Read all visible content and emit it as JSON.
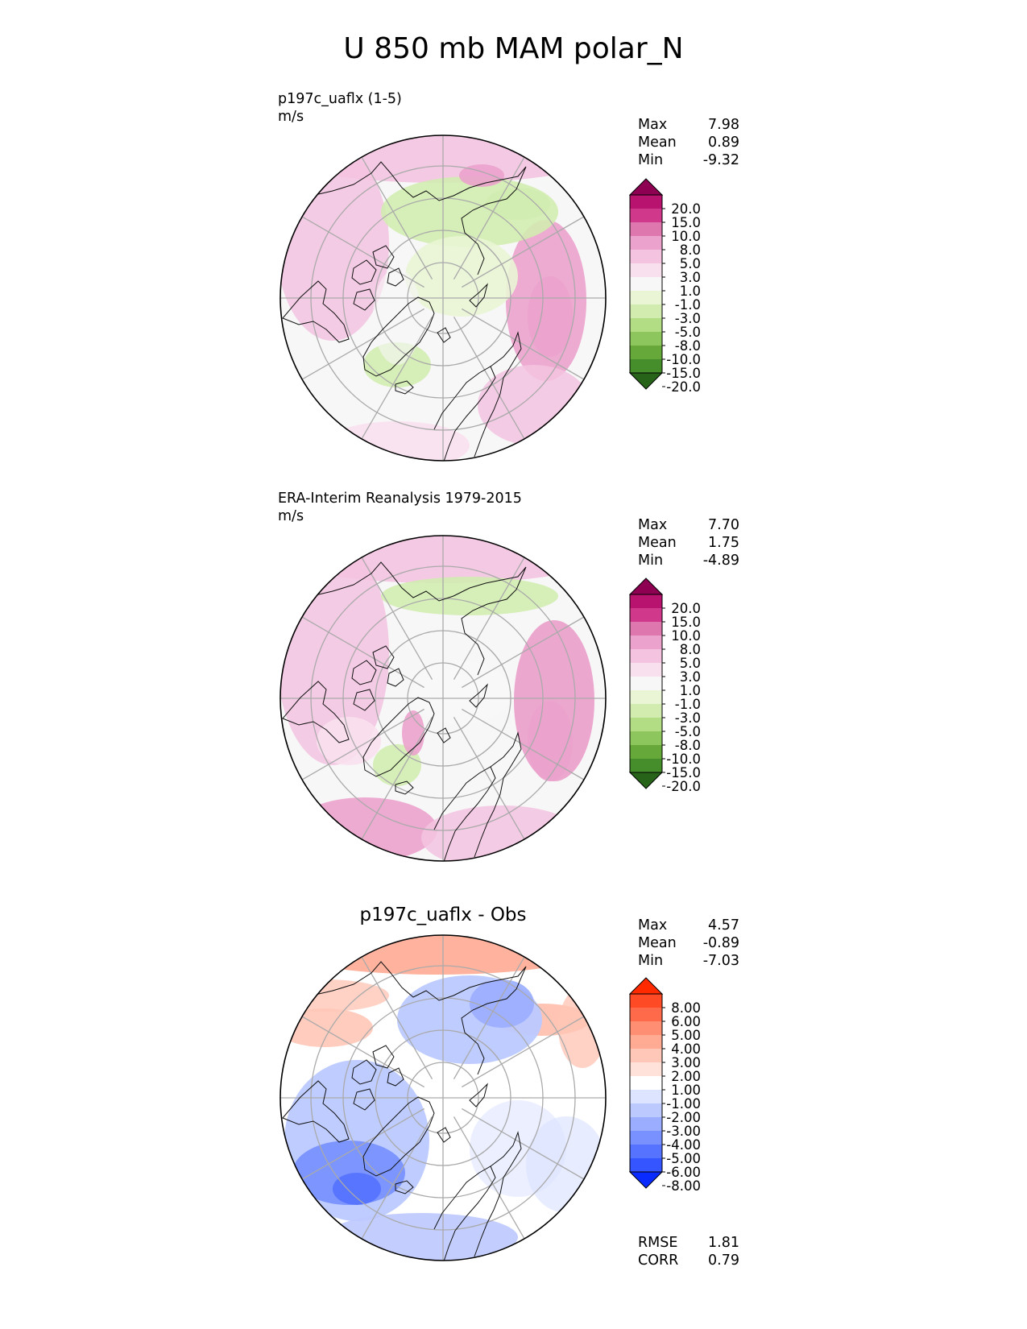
{
  "figure": {
    "title": "U 850 mb MAM polar_N"
  },
  "chart_data": [
    {
      "type": "heatmap",
      "projection": "north-polar-stereographic",
      "title_line": "p197c_uaflx (1-5)",
      "units": "m/s",
      "stats": {
        "max": "7.98",
        "mean": "0.89",
        "min": "-9.32"
      },
      "colorbar": {
        "levels": [
          "20.0",
          "15.0",
          "10.0",
          "8.0",
          "5.0",
          "3.0",
          "1.0",
          "-1.0",
          "-3.0",
          "-5.0",
          "-8.0",
          "-10.0",
          "-15.0",
          "-20.0"
        ],
        "colors": [
          "#8e0152",
          "#b8136f",
          "#d0398b",
          "#de77ae",
          "#eba2cc",
          "#f3c3e0",
          "#f9e0ee",
          "#f7f7f7",
          "#e9f5d4",
          "#d2ecb0",
          "#b2dd85",
          "#8cc65c",
          "#66a93a",
          "#468d2b",
          "#276419"
        ],
        "extend": "both"
      }
    },
    {
      "type": "heatmap",
      "projection": "north-polar-stereographic",
      "title_line": "ERA-Interim Reanalysis 1979-2015",
      "units": "m/s",
      "stats": {
        "max": "7.70",
        "mean": "1.75",
        "min": "-4.89"
      },
      "colorbar": {
        "levels": [
          "20.0",
          "15.0",
          "10.0",
          "8.0",
          "5.0",
          "3.0",
          "1.0",
          "-1.0",
          "-3.0",
          "-5.0",
          "-8.0",
          "-10.0",
          "-15.0",
          "-20.0"
        ],
        "colors": [
          "#8e0152",
          "#b8136f",
          "#d0398b",
          "#de77ae",
          "#eba2cc",
          "#f3c3e0",
          "#f9e0ee",
          "#f7f7f7",
          "#e9f5d4",
          "#d2ecb0",
          "#b2dd85",
          "#8cc65c",
          "#66a93a",
          "#468d2b",
          "#276419"
        ],
        "extend": "both"
      }
    },
    {
      "type": "heatmap",
      "projection": "north-polar-stereographic",
      "title_center": "p197c_uaflx - Obs",
      "stats": {
        "max": "4.57",
        "mean": "-0.89",
        "min": "-7.03"
      },
      "metrics": {
        "rmse": "1.81",
        "corr": "0.79"
      },
      "colorbar": {
        "levels": [
          "8.00",
          "6.00",
          "5.00",
          "4.00",
          "3.00",
          "2.00",
          "1.00",
          "-1.00",
          "-2.00",
          "-3.00",
          "-4.00",
          "-5.00",
          "-6.00",
          "-8.00"
        ],
        "colors": [
          "#ff2a00",
          "#ff4a26",
          "#ff6a4a",
          "#ff8e72",
          "#ffab94",
          "#ffc7b7",
          "#ffe2da",
          "#ffffff",
          "#dde4ff",
          "#bcc9ff",
          "#9aadff",
          "#7891ff",
          "#5673ff",
          "#3455ff",
          "#0a2bff"
        ],
        "extend": "both"
      }
    }
  ],
  "stat_labels": {
    "max": "Max",
    "mean": "Mean",
    "min": "Min",
    "rmse": "RMSE",
    "corr": "CORR"
  }
}
